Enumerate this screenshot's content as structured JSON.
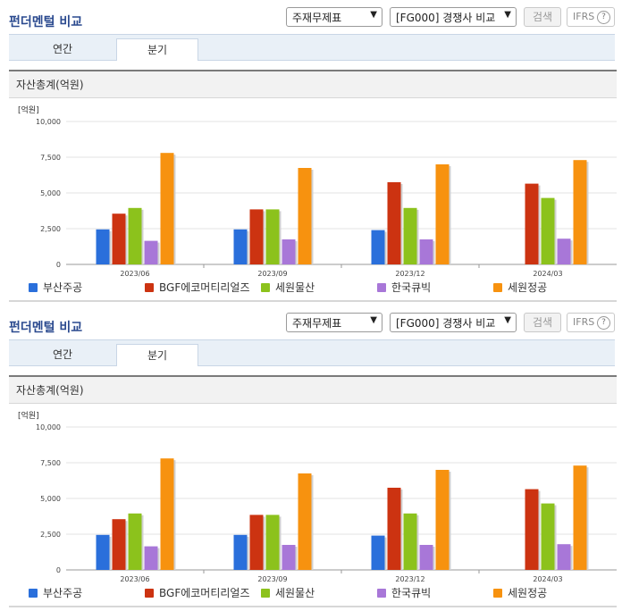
{
  "panels": [
    {
      "title": "펀더멘털 비교",
      "select_statement": "주재무제표",
      "select_compare": "[FG000] 경쟁사 비교",
      "search_label": "검색",
      "ifrs_label": "IFRS",
      "help_glyph": "?",
      "tabs": [
        {
          "label": "연간",
          "active": false
        },
        {
          "label": "분기",
          "active": true
        }
      ],
      "section_title": "자산총계(억원)",
      "unit_label": "[억원]"
    },
    {
      "title": "펀더멘털 비교",
      "select_statement": "주재무제표",
      "select_compare": "[FG000] 경쟁사 비교",
      "search_label": "검색",
      "ifrs_label": "IFRS",
      "help_glyph": "?",
      "tabs": [
        {
          "label": "연간",
          "active": false
        },
        {
          "label": "분기",
          "active": true
        }
      ],
      "section_title": "자산총계(억원)",
      "unit_label": "[억원]"
    }
  ],
  "icons": {
    "dropdown": "chevron-down-icon",
    "help": "help-icon"
  },
  "chart_data": [
    {
      "type": "bar",
      "title": "자산총계(억원)",
      "ylabel": "[억원]",
      "ylim": [
        0,
        10000
      ],
      "yticks": [
        "0",
        "2,500",
        "5,000",
        "7,500",
        "10,000"
      ],
      "ytick_values": [
        0,
        2500,
        5000,
        7500,
        10000
      ],
      "categories": [
        "2023/06",
        "2023/09",
        "2023/12",
        "2024/03"
      ],
      "grid": true,
      "legend_position": "bottom",
      "series": [
        {
          "name": "부산주공",
          "color": "#2a6fdb",
          "values": [
            2450,
            2450,
            2400,
            null
          ]
        },
        {
          "name": "BGF에코머티리얼즈",
          "color": "#cc3311",
          "values": [
            3550,
            3850,
            5750,
            5650
          ]
        },
        {
          "name": "세원물산",
          "color": "#8cc21c",
          "values": [
            3950,
            3850,
            3950,
            4650
          ]
        },
        {
          "name": "한국큐빅",
          "color": "#a877d8",
          "values": [
            1650,
            1750,
            1750,
            1800
          ]
        },
        {
          "name": "세원정공",
          "color": "#f7920f",
          "values": [
            7800,
            6750,
            7000,
            7300
          ]
        }
      ]
    },
    {
      "type": "bar",
      "title": "자산총계(억원)",
      "ylabel": "[억원]",
      "ylim": [
        0,
        10000
      ],
      "yticks": [
        "0",
        "2,500",
        "5,000",
        "7,500",
        "10,000"
      ],
      "ytick_values": [
        0,
        2500,
        5000,
        7500,
        10000
      ],
      "categories": [
        "2023/06",
        "2023/09",
        "2023/12",
        "2024/03"
      ],
      "grid": true,
      "legend_position": "bottom",
      "series": [
        {
          "name": "부산주공",
          "color": "#2a6fdb",
          "values": [
            2450,
            2450,
            2400,
            null
          ]
        },
        {
          "name": "BGF에코머티리얼즈",
          "color": "#cc3311",
          "values": [
            3550,
            3850,
            5750,
            5650
          ]
        },
        {
          "name": "세원물산",
          "color": "#8cc21c",
          "values": [
            3950,
            3850,
            3950,
            4650
          ]
        },
        {
          "name": "한국큐빅",
          "color": "#a877d8",
          "values": [
            1650,
            1750,
            1750,
            1800
          ]
        },
        {
          "name": "세원정공",
          "color": "#f7920f",
          "values": [
            7800,
            6750,
            7000,
            7300
          ]
        }
      ]
    }
  ]
}
